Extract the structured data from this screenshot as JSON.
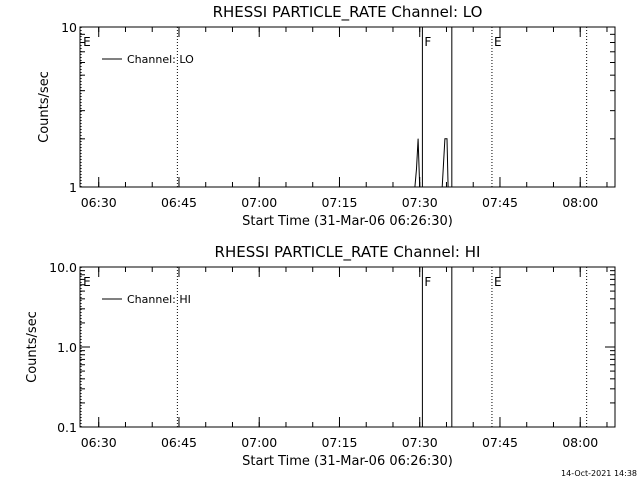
{
  "chart_data": [
    {
      "type": "line",
      "title": "RHESSI PARTICLE_RATE Channel: LO",
      "xlabel": "Start Time (31-Mar-06 06:26:30)",
      "ylabel": "Counts/sec",
      "y_scale": "log",
      "ylim": [
        1,
        10
      ],
      "y_ticks": [
        {
          "value": 1,
          "label": "1"
        },
        {
          "value": 10,
          "label": "10"
        }
      ],
      "x_unit": "minutes after 06:26:30",
      "xlim": [
        0,
        100
      ],
      "x_ticks": [
        {
          "value": 3.5,
          "label": "06:30"
        },
        {
          "value": 18.5,
          "label": "06:45"
        },
        {
          "value": 33.5,
          "label": "07:00"
        },
        {
          "value": 48.5,
          "label": "07:15"
        },
        {
          "value": 63.5,
          "label": "07:30"
        },
        {
          "value": 78.5,
          "label": "07:45"
        },
        {
          "value": 93.5,
          "label": "08:00"
        }
      ],
      "legend": {
        "label": "Channel: LO",
        "placement": "top-left"
      },
      "series": [
        {
          "name": "Channel: LO",
          "x": [
            62.6,
            62.9,
            63.2,
            63.5,
            64.5,
            67.7,
            68.2,
            68.6,
            68.8
          ],
          "y": [
            1.0,
            1.3,
            2.0,
            1.0,
            1.0,
            1.0,
            2.0,
            2.0,
            1.0
          ]
        }
      ],
      "markers": [
        {
          "x": 0.2,
          "style": "dotted",
          "label": "E"
        },
        {
          "x": 18.2,
          "style": "dotted",
          "label": ""
        },
        {
          "x": 64.0,
          "style": "solid",
          "label": "F"
        },
        {
          "x": 69.5,
          "style": "solid",
          "label": ""
        },
        {
          "x": 77.0,
          "style": "dotted",
          "label": "E"
        },
        {
          "x": 94.7,
          "style": "dotted",
          "label": ""
        }
      ]
    },
    {
      "type": "line",
      "title": "RHESSI PARTICLE_RATE Channel: HI",
      "xlabel": "Start Time (31-Mar-06 06:26:30)",
      "ylabel": "Counts/sec",
      "y_scale": "log",
      "ylim": [
        0.1,
        10
      ],
      "y_ticks": [
        {
          "value": 0.1,
          "label": "0.1"
        },
        {
          "value": 1,
          "label": "1.0"
        },
        {
          "value": 10,
          "label": "10.0"
        }
      ],
      "x_unit": "minutes after 06:26:30",
      "xlim": [
        0,
        100
      ],
      "x_ticks": [
        {
          "value": 3.5,
          "label": "06:30"
        },
        {
          "value": 18.5,
          "label": "06:45"
        },
        {
          "value": 33.5,
          "label": "07:00"
        },
        {
          "value": 48.5,
          "label": "07:15"
        },
        {
          "value": 63.5,
          "label": "07:30"
        },
        {
          "value": 78.5,
          "label": "07:45"
        },
        {
          "value": 93.5,
          "label": "08:00"
        }
      ],
      "legend": {
        "label": "Channel: HI",
        "placement": "top-left"
      },
      "series": [
        {
          "name": "Channel: HI",
          "x": [],
          "y": []
        }
      ],
      "markers": [
        {
          "x": 0.2,
          "style": "dotted",
          "label": "E"
        },
        {
          "x": 18.2,
          "style": "dotted",
          "label": ""
        },
        {
          "x": 64.0,
          "style": "solid",
          "label": "F"
        },
        {
          "x": 69.5,
          "style": "solid",
          "label": ""
        },
        {
          "x": 77.0,
          "style": "dotted",
          "label": "E"
        },
        {
          "x": 94.7,
          "style": "dotted",
          "label": ""
        }
      ]
    }
  ],
  "footer": {
    "timestamp": "14-Oct-2021 14:38"
  }
}
